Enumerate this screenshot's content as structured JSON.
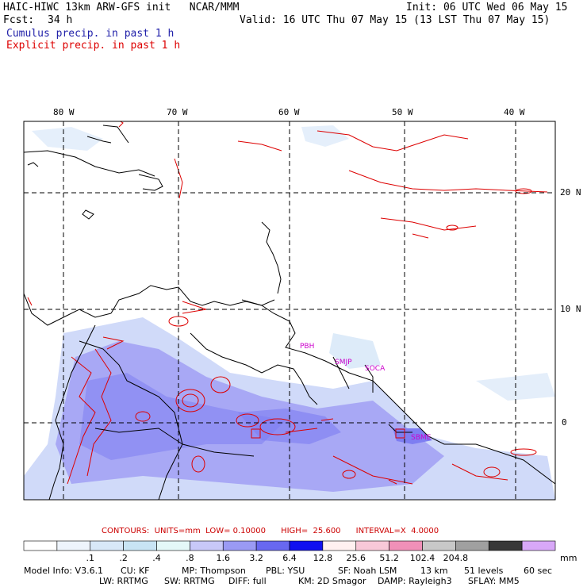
{
  "header": {
    "title": "HAIC-HIWC 13km ARW-GFS init   NCAR/MMM",
    "init": "Init: 06 UTC Wed 06 May 15",
    "fcst_label": "Fcst:",
    "fcst_value": "34 h",
    "valid": "Valid: 16 UTC Thu 07 May 15 (13 LST Thu 07 May 15)",
    "cumulus": "Cumulus precip. in past 1 h",
    "explicit": "Explicit precip. in past 1 h"
  },
  "colors": {
    "cumulus": "#2222aa",
    "explicit": "#dd0000",
    "contour": "#dd0000",
    "coast": "#000000",
    "label": "#cc00cc"
  },
  "map": {
    "lon_labels": [
      "80 W",
      "70 W",
      "60 W",
      "50 W",
      "40 W"
    ],
    "lat_labels": [
      "20 N",
      "10 N",
      "0"
    ],
    "station_labels": [
      "PBH",
      "SMJP",
      "SOCA",
      "SBME"
    ]
  },
  "contours_line": {
    "label": "CONTOURS:",
    "units": "UNITS=mm",
    "low": "LOW= 0.10000",
    "high": "HIGH=  25.600",
    "interval": "INTERVAL=X  4.0000"
  },
  "colorbar": {
    "unit": "mm",
    "colors": [
      "#ffffff",
      "#eef4fc",
      "#d8e8f8",
      "#c8e4f4",
      "#e4f8f8",
      "#c8c8f8",
      "#9a9af4",
      "#6868f0",
      "#1010f0",
      "#fff0f0",
      "#f8c8d8",
      "#f090b8",
      "#c8c8c8",
      "#a0a0a0",
      "#383838",
      "#d8a8f8"
    ],
    "labels": [
      ".1",
      ".2",
      ".4",
      ".8",
      "1.6",
      "3.2",
      "6.4",
      "12.8",
      "25.6",
      "51.2",
      "102.4",
      "204.8"
    ]
  },
  "model_info": {
    "line1": [
      "Model Info: V3.6.1",
      "CU: KF",
      "MP: Thompson",
      "PBL: YSU",
      "SF: Noah LSM",
      "13 km",
      "51 levels",
      "60 sec"
    ],
    "line2": [
      "LW: RRTMG",
      "SW: RRTMG",
      "DIFF: full",
      "KM: 2D Smagor",
      "DAMP: Rayleigh3",
      "SFLAY: MM5"
    ]
  }
}
